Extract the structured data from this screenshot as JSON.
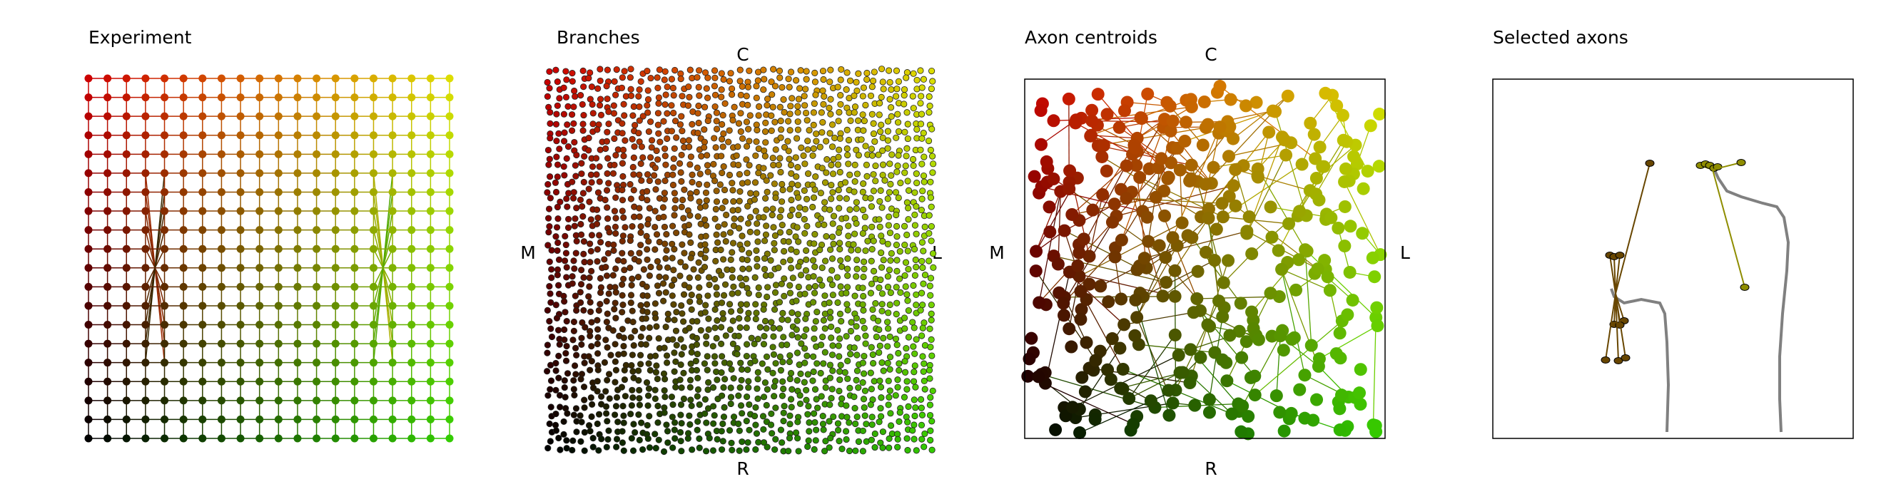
{
  "figure": {
    "panels": [
      {
        "id": "experiment",
        "title": "Experiment"
      },
      {
        "id": "branches",
        "title": "Branches",
        "labels": {
          "top": "C",
          "bottom": "R",
          "left": "M",
          "right": "L"
        }
      },
      {
        "id": "centroids",
        "title": "Axon centroids",
        "labels": {
          "top": "C",
          "bottom": "R",
          "left": "M",
          "right": "L"
        }
      },
      {
        "id": "selected",
        "title": "Selected axons"
      }
    ],
    "colors": {
      "top_left": "#cc0000",
      "top_right": "#dddd00",
      "bottom_left": "#000000",
      "bottom_right": "#33cc00",
      "mid_green": "#3a7a10",
      "trace_gray": "#808080",
      "frame": "#000000"
    }
  },
  "chart_data": [
    {
      "type": "scatter",
      "title": "Experiment",
      "description_kind": "grid-network",
      "grid": {
        "cols": 20,
        "rows": 20
      },
      "color_map": "x → red-to-green, y → bright(top)-to-dark(bottom)",
      "annotations": "two crossing fan bundles near left and right edges"
    },
    {
      "type": "scatter",
      "title": "Branches",
      "xlabel_top": "C",
      "xlabel_bottom": "R",
      "ylabel_left": "M",
      "ylabel_right": "L",
      "point_count_approx": 2000
    },
    {
      "type": "scatter",
      "title": "Axon centroids",
      "xlabel_top": "C",
      "xlabel_bottom": "R",
      "ylabel_left": "M",
      "ylabel_right": "L",
      "point_count_approx": 380,
      "frame": true
    },
    {
      "type": "line",
      "title": "Selected axons",
      "series": [
        {
          "kind": "axon-trace",
          "color": "#808080"
        },
        {
          "kind": "axon-trace",
          "color": "#808080"
        }
      ],
      "frame": true
    }
  ]
}
